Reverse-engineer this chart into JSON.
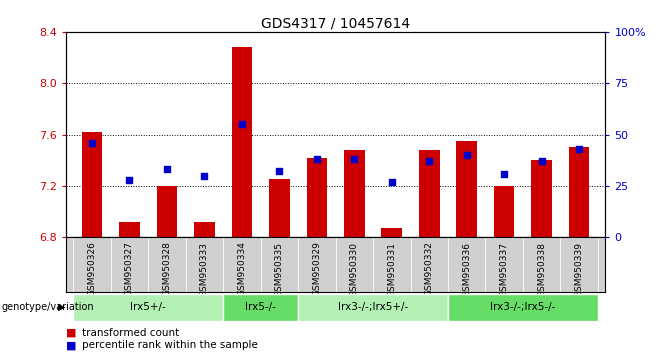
{
  "title": "GDS4317 / 10457614",
  "samples": [
    "GSM950326",
    "GSM950327",
    "GSM950328",
    "GSM950333",
    "GSM950334",
    "GSM950335",
    "GSM950329",
    "GSM950330",
    "GSM950331",
    "GSM950332",
    "GSM950336",
    "GSM950337",
    "GSM950338",
    "GSM950339"
  ],
  "bar_values": [
    7.62,
    6.92,
    7.2,
    6.92,
    8.28,
    7.25,
    7.42,
    7.48,
    6.87,
    7.48,
    7.55,
    7.2,
    7.4,
    7.5
  ],
  "dot_values": [
    46,
    28,
    33,
    30,
    55,
    32,
    38,
    38,
    27,
    37,
    40,
    31,
    37,
    43
  ],
  "ylim_left": [
    6.8,
    8.4
  ],
  "ylim_right": [
    0,
    100
  ],
  "yticks_left": [
    6.8,
    7.2,
    7.6,
    8.0,
    8.4
  ],
  "yticks_right": [
    0,
    25,
    50,
    75,
    100
  ],
  "bar_color": "#cc0000",
  "dot_color": "#0000cc",
  "bar_bottom": 6.8,
  "groups": [
    {
      "label": "lrx5+/-",
      "start": 0,
      "end": 4
    },
    {
      "label": "lrx5-/-",
      "start": 4,
      "end": 6
    },
    {
      "label": "lrx3-/-;lrx5+/-",
      "start": 6,
      "end": 10
    },
    {
      "label": "lrx3-/-;lrx5-/-",
      "start": 10,
      "end": 14
    }
  ],
  "group_colors": [
    "#b3f0b3",
    "#66dd66",
    "#b3f0b3",
    "#66dd66"
  ],
  "legend_bar_label": "transformed count",
  "legend_dot_label": "percentile rank within the sample",
  "genotype_label": "genotype/variation",
  "bg_color": "#ffffff",
  "tick_label_color_left": "#cc0000",
  "tick_label_color_right": "#0000cc",
  "xlabel_area_color": "#d0d0d0"
}
